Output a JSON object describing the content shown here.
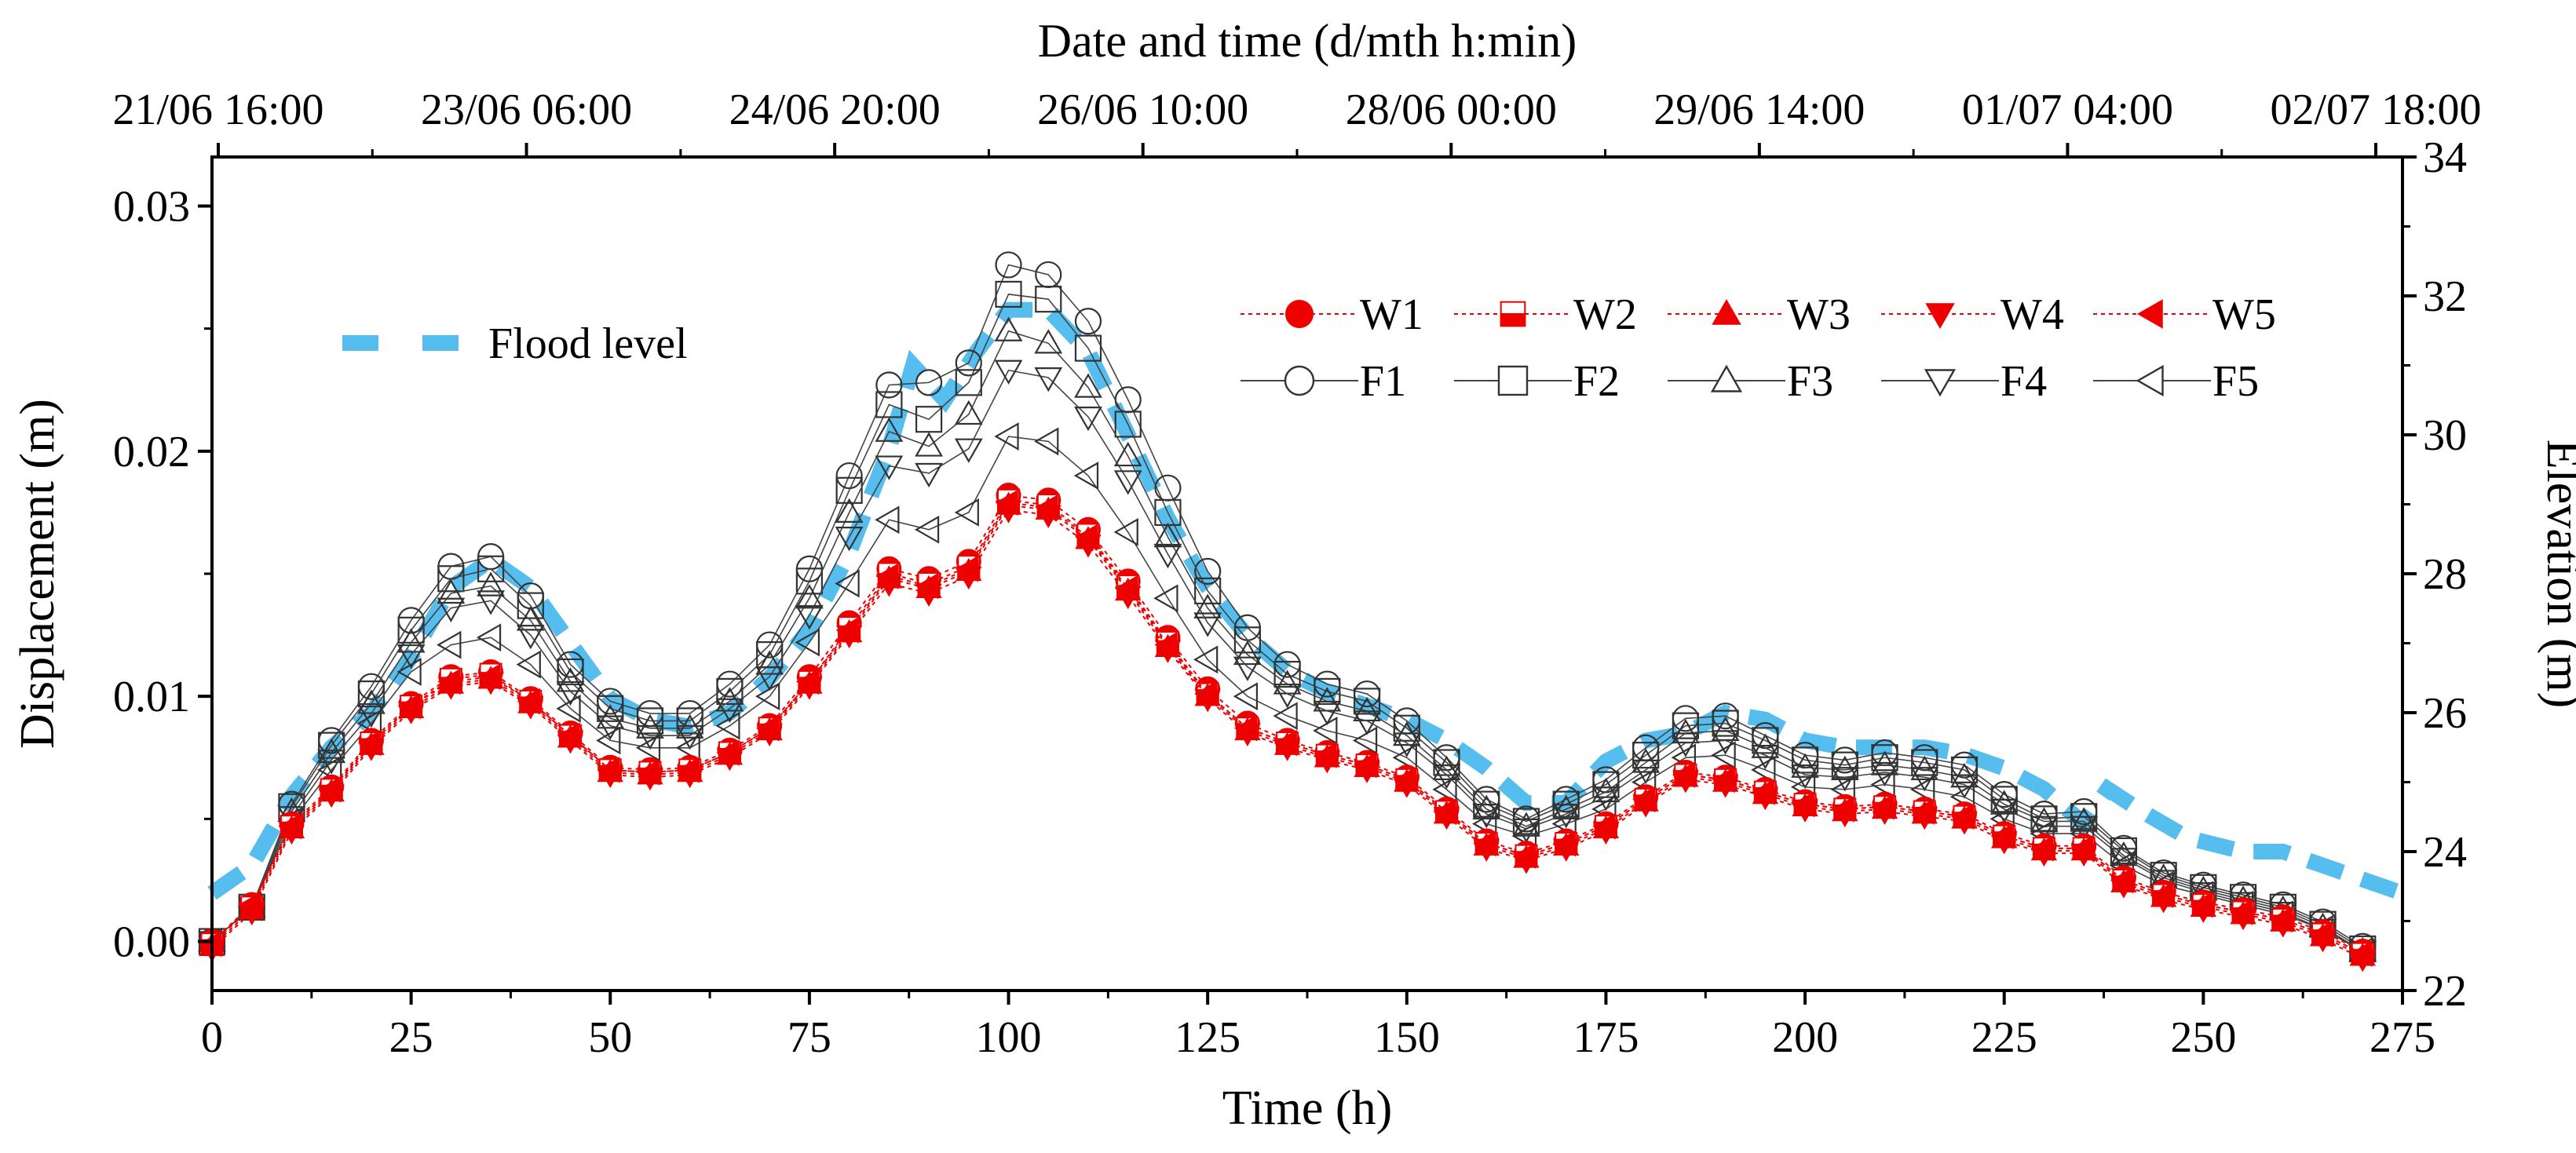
{
  "chart_data": {
    "type": "line",
    "top_axis": {
      "label": "Date and time (d/mth h:min)",
      "tick_labels": [
        "21/06 16:00",
        "23/06 06:00",
        "24/06 20:00",
        "26/06 10:00",
        "28/06 00:00",
        "29/06 14:00",
        "01/07 04:00",
        "02/07 18:00"
      ]
    },
    "x": {
      "label": "Time (h)",
      "lim": [
        0,
        275
      ],
      "ticks": [
        0,
        25,
        50,
        75,
        100,
        125,
        150,
        175,
        200,
        225,
        250,
        275
      ],
      "tick_labels": [
        "0",
        "25",
        "50",
        "75",
        "100",
        "125",
        "150",
        "175",
        "200",
        "225",
        "250",
        "275"
      ]
    },
    "y_left": {
      "label": "Displacement (m)",
      "lim": [
        -0.002,
        0.032
      ],
      "ticks": [
        0,
        0.01,
        0.02,
        0.03
      ],
      "tick_labels": [
        "0.00",
        "0.01",
        "0.02",
        "0.03"
      ]
    },
    "y_right": {
      "label": "Elevation (m)",
      "lim": [
        22,
        34
      ],
      "ticks": [
        22,
        24,
        26,
        28,
        30,
        32,
        34
      ],
      "tick_labels": [
        "22",
        "24",
        "26",
        "28",
        "30",
        "32",
        "34"
      ]
    },
    "flood_series": {
      "name": "Flood level",
      "color": "#55BEEE",
      "axis": "right",
      "x": [
        0,
        5,
        10,
        15,
        20,
        25,
        30,
        35,
        40,
        45,
        50,
        55,
        60,
        65,
        70,
        75,
        80,
        85,
        88,
        92,
        96,
        100,
        105,
        110,
        115,
        120,
        125,
        130,
        135,
        140,
        145,
        150,
        155,
        160,
        165,
        170,
        175,
        180,
        185,
        190,
        195,
        200,
        205,
        210,
        215,
        220,
        225,
        230,
        235,
        238,
        242,
        248,
        255,
        260,
        265,
        270,
        275
      ],
      "y": [
        23.4,
        23.8,
        24.8,
        25.5,
        26.0,
        26.8,
        27.8,
        28.2,
        27.8,
        27.0,
        26.2,
        25.9,
        25.8,
        26.0,
        26.5,
        27.2,
        28.3,
        29.8,
        31.0,
        30.5,
        31.2,
        31.8,
        31.8,
        31.2,
        30.0,
        28.8,
        27.8,
        27.1,
        26.6,
        26.3,
        26.1,
        25.9,
        25.6,
        25.2,
        24.7,
        24.7,
        25.3,
        25.6,
        25.7,
        26.0,
        25.9,
        25.6,
        25.5,
        25.5,
        25.5,
        25.4,
        25.2,
        24.9,
        24.4,
        24.9,
        24.6,
        24.2,
        24.0,
        24.0,
        23.8,
        23.6,
        23.4
      ]
    },
    "x_markers": [
      0,
      5,
      10,
      15,
      20,
      25,
      30,
      35,
      40,
      45,
      50,
      55,
      60,
      65,
      70,
      75,
      80,
      85,
      90,
      95,
      100,
      105,
      110,
      115,
      120,
      125,
      130,
      135,
      140,
      145,
      150,
      155,
      160,
      165,
      170,
      175,
      180,
      185,
      190,
      195,
      200,
      205,
      210,
      215,
      220,
      225,
      230,
      235,
      240,
      245,
      250,
      255,
      260,
      265,
      270
    ],
    "series": [
      {
        "name": "W1",
        "marker": "circle",
        "filled": true,
        "color": "#EE0000",
        "line": "dotted",
        "values": [
          0.0,
          0.0015,
          0.0048,
          0.0063,
          0.0082,
          0.0097,
          0.0108,
          0.011,
          0.0099,
          0.0085,
          0.0071,
          0.007,
          0.0071,
          0.0078,
          0.0088,
          0.0108,
          0.013,
          0.0152,
          0.0148,
          0.0155,
          0.0182,
          0.018,
          0.0168,
          0.0147,
          0.0124,
          0.0103,
          0.0089,
          0.0082,
          0.0077,
          0.0073,
          0.0067,
          0.0054,
          0.0041,
          0.0036,
          0.0041,
          0.0048,
          0.0059,
          0.0069,
          0.0067,
          0.0062,
          0.0057,
          0.0055,
          0.0056,
          0.0054,
          0.0052,
          0.0044,
          0.0039,
          0.0039,
          0.0026,
          0.002,
          0.0016,
          0.0013,
          0.001,
          0.0004,
          -0.0004
        ]
      },
      {
        "name": "W2",
        "marker": "square-half",
        "filled": true,
        "color": "#EE0000",
        "line": "dotted",
        "values": [
          -0.0001,
          0.0014,
          0.0047,
          0.0062,
          0.0081,
          0.0096,
          0.0107,
          0.0109,
          0.0098,
          0.0084,
          0.007,
          0.0069,
          0.007,
          0.0077,
          0.0087,
          0.0106,
          0.0128,
          0.015,
          0.0146,
          0.0153,
          0.018,
          0.0178,
          0.0166,
          0.0145,
          0.0122,
          0.0101,
          0.0087,
          0.0081,
          0.0076,
          0.0072,
          0.0066,
          0.0053,
          0.004,
          0.0035,
          0.004,
          0.0047,
          0.0058,
          0.0068,
          0.0066,
          0.0061,
          0.0056,
          0.0054,
          0.0055,
          0.0053,
          0.0051,
          0.0043,
          0.0038,
          0.0038,
          0.0025,
          0.0019,
          0.0015,
          0.0012,
          0.0009,
          0.0003,
          -0.0005
        ]
      },
      {
        "name": "W3",
        "marker": "triangle-up",
        "filled": true,
        "color": "#EE0000",
        "line": "dotted",
        "values": [
          -0.0002,
          0.0013,
          0.0046,
          0.0061,
          0.008,
          0.0095,
          0.0105,
          0.0107,
          0.0097,
          0.0083,
          0.0069,
          0.0068,
          0.0069,
          0.0076,
          0.0086,
          0.0105,
          0.0126,
          0.0148,
          0.0144,
          0.0151,
          0.0178,
          0.0176,
          0.0164,
          0.0143,
          0.012,
          0.01,
          0.0086,
          0.008,
          0.0075,
          0.0071,
          0.0065,
          0.0052,
          0.0039,
          0.0034,
          0.0039,
          0.0046,
          0.0057,
          0.0067,
          0.0065,
          0.006,
          0.0055,
          0.0053,
          0.0054,
          0.0052,
          0.005,
          0.0042,
          0.0037,
          0.0037,
          0.0024,
          0.0018,
          0.0014,
          0.0011,
          0.0008,
          0.0002,
          -0.0006
        ]
      },
      {
        "name": "W4",
        "marker": "triangle-down",
        "filled": true,
        "color": "#EE0000",
        "line": "dotted",
        "values": [
          -0.0003,
          0.0012,
          0.0045,
          0.006,
          0.0079,
          0.0094,
          0.0104,
          0.0106,
          0.0096,
          0.0082,
          0.0068,
          0.0067,
          0.0068,
          0.0075,
          0.0085,
          0.0104,
          0.0125,
          0.0146,
          0.0142,
          0.0149,
          0.0176,
          0.0174,
          0.0162,
          0.0141,
          0.0119,
          0.0099,
          0.0085,
          0.0079,
          0.0074,
          0.007,
          0.0064,
          0.0051,
          0.0038,
          0.0033,
          0.0038,
          0.0045,
          0.0056,
          0.0066,
          0.0064,
          0.0059,
          0.0054,
          0.0052,
          0.0053,
          0.0051,
          0.0049,
          0.0041,
          0.0036,
          0.0036,
          0.0023,
          0.0017,
          0.0013,
          0.001,
          0.0007,
          0.0001,
          -0.0007
        ]
      },
      {
        "name": "W5",
        "marker": "triangle-left",
        "filled": true,
        "color": "#EE0000",
        "line": "dotted",
        "values": [
          -0.0001,
          0.0015,
          0.0047,
          0.0062,
          0.0081,
          0.0096,
          0.0106,
          0.0108,
          0.0098,
          0.0084,
          0.007,
          0.0069,
          0.007,
          0.0077,
          0.0087,
          0.0106,
          0.0127,
          0.0149,
          0.0145,
          0.0152,
          0.0179,
          0.0177,
          0.0165,
          0.0144,
          0.0121,
          0.0101,
          0.0087,
          0.0081,
          0.0076,
          0.0072,
          0.0066,
          0.0053,
          0.004,
          0.0035,
          0.004,
          0.0047,
          0.0058,
          0.0068,
          0.0066,
          0.0061,
          0.0056,
          0.0054,
          0.0055,
          0.0053,
          0.0051,
          0.0043,
          0.0038,
          0.0038,
          0.0025,
          0.0019,
          0.0015,
          0.0012,
          0.0009,
          0.0003,
          -0.0005
        ]
      },
      {
        "name": "F1",
        "marker": "circle",
        "filled": false,
        "color": "#555555",
        "line": "solid",
        "values": [
          0.0,
          0.0014,
          0.0056,
          0.0082,
          0.0104,
          0.0131,
          0.0153,
          0.0157,
          0.0141,
          0.0113,
          0.0098,
          0.0093,
          0.0093,
          0.0105,
          0.0121,
          0.0152,
          0.019,
          0.0227,
          0.0228,
          0.0236,
          0.0276,
          0.0272,
          0.0253,
          0.0221,
          0.0185,
          0.0151,
          0.0128,
          0.0113,
          0.0105,
          0.0101,
          0.009,
          0.0075,
          0.0058,
          0.005,
          0.0058,
          0.0066,
          0.0079,
          0.0091,
          0.0092,
          0.0084,
          0.0076,
          0.0074,
          0.0077,
          0.0075,
          0.0072,
          0.006,
          0.0052,
          0.0053,
          0.0038,
          0.0028,
          0.0023,
          0.0019,
          0.0015,
          0.0008,
          -0.0002
        ]
      },
      {
        "name": "F2",
        "marker": "square",
        "filled": false,
        "color": "#555555",
        "line": "solid",
        "values": [
          0.0,
          0.0014,
          0.0055,
          0.008,
          0.0101,
          0.0127,
          0.0148,
          0.0152,
          0.0137,
          0.011,
          0.0095,
          0.009,
          0.009,
          0.0102,
          0.0117,
          0.0147,
          0.0184,
          0.0219,
          0.0213,
          0.0228,
          0.0264,
          0.0262,
          0.0242,
          0.0211,
          0.0175,
          0.0143,
          0.0123,
          0.0109,
          0.0102,
          0.0098,
          0.0087,
          0.0073,
          0.0056,
          0.0049,
          0.0056,
          0.0064,
          0.0076,
          0.0088,
          0.0089,
          0.0082,
          0.0074,
          0.0072,
          0.0075,
          0.0073,
          0.007,
          0.0058,
          0.005,
          0.0051,
          0.0037,
          0.0027,
          0.0022,
          0.0018,
          0.0014,
          0.0007,
          -0.0003
        ]
      },
      {
        "name": "F3",
        "marker": "triangle-up",
        "filled": false,
        "color": "#555555",
        "line": "solid",
        "values": [
          0.0,
          0.0014,
          0.0053,
          0.0077,
          0.0097,
          0.0122,
          0.0142,
          0.0145,
          0.0131,
          0.0106,
          0.0091,
          0.0087,
          0.0087,
          0.0098,
          0.0113,
          0.014,
          0.0175,
          0.0208,
          0.0202,
          0.0215,
          0.0249,
          0.0244,
          0.0226,
          0.0198,
          0.0165,
          0.0136,
          0.0117,
          0.0105,
          0.0098,
          0.0094,
          0.0084,
          0.007,
          0.0054,
          0.0047,
          0.0054,
          0.0061,
          0.0073,
          0.0085,
          0.0086,
          0.0079,
          0.0071,
          0.007,
          0.0072,
          0.007,
          0.0067,
          0.0056,
          0.0049,
          0.0049,
          0.0035,
          0.0026,
          0.0021,
          0.0017,
          0.0013,
          0.0006,
          -0.0004
        ]
      },
      {
        "name": "F4",
        "marker": "triangle-down",
        "filled": false,
        "color": "#555555",
        "line": "solid",
        "values": [
          0.0,
          0.0014,
          0.0051,
          0.0074,
          0.0093,
          0.0117,
          0.0136,
          0.0139,
          0.0125,
          0.0102,
          0.0088,
          0.0084,
          0.0084,
          0.0095,
          0.0108,
          0.0133,
          0.0165,
          0.0194,
          0.0191,
          0.0201,
          0.0233,
          0.023,
          0.0214,
          0.0188,
          0.0158,
          0.013,
          0.0112,
          0.0101,
          0.0094,
          0.009,
          0.0081,
          0.0068,
          0.0052,
          0.0046,
          0.0052,
          0.0059,
          0.007,
          0.0081,
          0.0082,
          0.0076,
          0.0068,
          0.0067,
          0.0069,
          0.0067,
          0.0064,
          0.0054,
          0.0047,
          0.0047,
          0.0034,
          0.0025,
          0.002,
          0.0016,
          0.0012,
          0.0005,
          -0.0004
        ]
      },
      {
        "name": "F5",
        "marker": "triangle-left",
        "filled": false,
        "color": "#555555",
        "line": "solid",
        "values": [
          0.0,
          0.0014,
          0.0049,
          0.007,
          0.0089,
          0.011,
          0.0121,
          0.0124,
          0.0113,
          0.0095,
          0.0082,
          0.0079,
          0.0079,
          0.0088,
          0.01,
          0.0122,
          0.0146,
          0.0172,
          0.0168,
          0.0175,
          0.0206,
          0.0204,
          0.019,
          0.0167,
          0.014,
          0.0115,
          0.01,
          0.0092,
          0.0086,
          0.0082,
          0.0075,
          0.0062,
          0.0048,
          0.0043,
          0.0048,
          0.0054,
          0.0065,
          0.0075,
          0.0076,
          0.007,
          0.0063,
          0.0062,
          0.0064,
          0.0062,
          0.0059,
          0.005,
          0.0044,
          0.0044,
          0.0031,
          0.0023,
          0.0019,
          0.0015,
          0.0011,
          0.0005,
          -0.0004
        ]
      }
    ],
    "legend": {
      "flood_label": "Flood level",
      "position": "upper area inside plot"
    }
  }
}
